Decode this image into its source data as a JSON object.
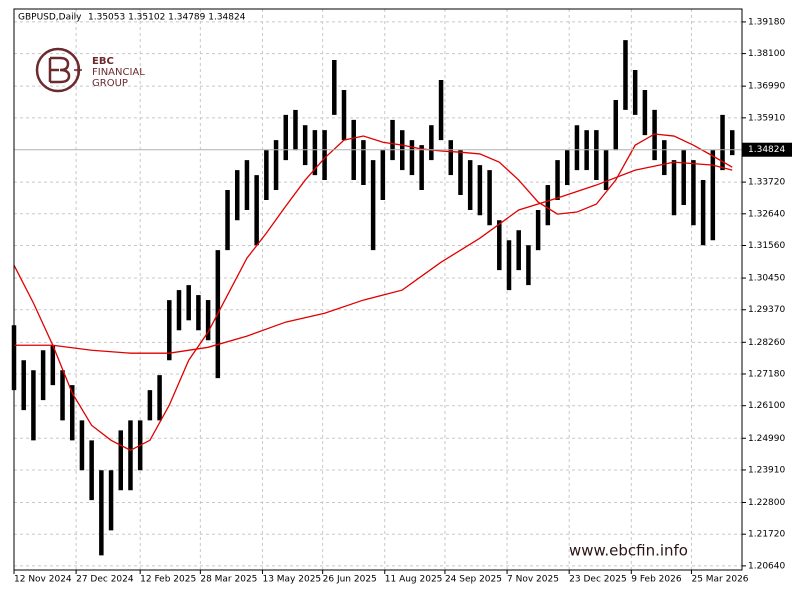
{
  "chart_data": {
    "type": "ohlc",
    "title": "GBPUSD,Daily",
    "subtitle": "1.35053 1.35102 1.34789 1.34824",
    "color": "#000000",
    "grid": true,
    "xlim": [
      0,
      374
    ],
    "ylim": [
      1.205,
      1.3962
    ],
    "xticks": [
      {
        "value": 0,
        "label": "12 Nov 2024"
      },
      {
        "value": 32,
        "label": "27 Dec 2024"
      },
      {
        "value": 65,
        "label": "12 Feb 2025"
      },
      {
        "value": 96,
        "label": "28 Mar 2025"
      },
      {
        "value": 128,
        "label": "13 May 2025"
      },
      {
        "value": 159,
        "label": "26 Jun 2025"
      },
      {
        "value": 191,
        "label": "11 Aug 2025"
      },
      {
        "value": 222,
        "label": "24 Sep 2025"
      },
      {
        "value": 254,
        "label": "7 Nov 2025"
      },
      {
        "value": 286,
        "label": "23 Dec 2025"
      },
      {
        "value": 318,
        "label": "9 Feb 2026"
      },
      {
        "value": 349,
        "label": "25 Mar 2026"
      }
    ],
    "yticks": [
      {
        "value": 1.2064,
        "label": "1.20640"
      },
      {
        "value": 1.2172,
        "label": "1.21720"
      },
      {
        "value": 1.228,
        "label": "1.22800"
      },
      {
        "value": 1.2391,
        "label": "1.23910"
      },
      {
        "value": 1.2499,
        "label": "1.24990"
      },
      {
        "value": 1.261,
        "label": "1.26100"
      },
      {
        "value": 1.2718,
        "label": "1.27180"
      },
      {
        "value": 1.2826,
        "label": "1.28260"
      },
      {
        "value": 1.2937,
        "label": "1.29370"
      },
      {
        "value": 1.3045,
        "label": "1.30450"
      },
      {
        "value": 1.3156,
        "label": "1.31560"
      },
      {
        "value": 1.3264,
        "label": "1.32640"
      },
      {
        "value": 1.3372,
        "label": "1.33720"
      },
      {
        "value": 1.3591,
        "label": "1.35910"
      },
      {
        "value": 1.3699,
        "label": "1.36990"
      },
      {
        "value": 1.381,
        "label": "1.38100"
      },
      {
        "value": 1.3918,
        "label": "1.39180"
      }
    ],
    "last_price": {
      "value": 1.34824,
      "label": "1.34824"
    },
    "x": [
      0,
      5,
      10,
      15,
      20,
      25,
      30,
      35,
      40,
      45,
      50,
      55,
      60,
      65,
      70,
      75,
      80,
      85,
      90,
      95,
      100,
      105,
      110,
      115,
      120,
      125,
      130,
      135,
      140,
      145,
      150,
      155,
      160,
      165,
      170,
      175,
      180,
      185,
      190,
      195,
      200,
      205,
      210,
      215,
      220,
      225,
      230,
      235,
      240,
      245,
      250,
      255,
      260,
      265,
      270,
      275,
      280,
      285,
      290,
      295,
      300,
      305,
      310,
      315,
      320,
      325,
      330,
      335,
      340,
      345,
      350,
      355,
      360,
      365,
      370
    ],
    "high": [
      1.2884,
      1.2765,
      1.2731,
      1.2799,
      1.2816,
      1.2731,
      1.268,
      1.256,
      1.2492,
      1.239,
      1.239,
      1.2526,
      1.256,
      1.256,
      1.2663,
      1.2714,
      1.297,
      1.3004,
      1.3021,
      1.2987,
      1.297,
      1.314,
      1.3345,
      1.3413,
      1.3447,
      1.3396,
      1.3481,
      1.3515,
      1.3601,
      1.3618,
      1.3566,
      1.3549,
      1.3549,
      1.3788,
      1.3686,
      1.3584,
      1.3515,
      1.3447,
      1.3481,
      1.3584,
      1.3549,
      1.3515,
      1.3498,
      1.3566,
      1.372,
      1.3515,
      1.3481,
      1.3447,
      1.343,
      1.3413,
      1.3242,
      1.3174,
      1.3208,
      1.3157,
      1.3277,
      1.3362,
      1.3447,
      1.3481,
      1.3566,
      1.3549,
      1.3549,
      1.3481,
      1.3652,
      1.3856,
      1.3754,
      1.3686,
      1.3618,
      1.3515,
      1.3447,
      1.3481,
      1.3447,
      1.3379,
      1.3481,
      1.3601,
      1.3549
    ],
    "low": [
      1.2663,
      1.2595,
      1.2492,
      1.2629,
      1.268,
      1.256,
      1.2492,
      1.239,
      1.2288,
      1.21,
      1.2185,
      1.2322,
      1.2322,
      1.239,
      1.256,
      1.256,
      1.2765,
      1.2867,
      1.2901,
      1.2867,
      1.2833,
      1.2704,
      1.314,
      1.3242,
      1.3277,
      1.3157,
      1.3311,
      1.3345,
      1.3447,
      1.3481,
      1.343,
      1.3396,
      1.3379,
      1.3601,
      1.3515,
      1.3379,
      1.3362,
      1.314,
      1.3311,
      1.3447,
      1.3413,
      1.3396,
      1.3345,
      1.3447,
      1.3515,
      1.3396,
      1.3328,
      1.3277,
      1.3259,
      1.3225,
      1.3072,
      1.3004,
      1.3072,
      1.3021,
      1.314,
      1.3225,
      1.3311,
      1.3362,
      1.3413,
      1.3413,
      1.3379,
      1.3345,
      1.3481,
      1.3618,
      1.3601,
      1.3532,
      1.3447,
      1.3396,
      1.3259,
      1.3294,
      1.3225,
      1.3157,
      1.3174,
      1.3413,
      1.3464
    ],
    "overlays": [
      {
        "type": "line",
        "color": "#e00000",
        "x": [
          0,
          10,
          20,
          30,
          40,
          50,
          60,
          70,
          80,
          90,
          100,
          110,
          120,
          130,
          140,
          150,
          160,
          170,
          180,
          190,
          200,
          210,
          220,
          230,
          240,
          250,
          260,
          270,
          280,
          290,
          300,
          310,
          320,
          330,
          340,
          350,
          360,
          370
        ],
        "values": [
          1.3089,
          1.296,
          1.2816,
          1.2653,
          1.2543,
          1.2492,
          1.2458,
          1.2492,
          1.2612,
          1.2765,
          1.2861,
          1.2987,
          1.3113,
          1.3198,
          1.329,
          1.3379,
          1.3454,
          1.3515,
          1.3529,
          1.3508,
          1.3498,
          1.3485,
          1.3478,
          1.3474,
          1.3468,
          1.344,
          1.3379,
          1.3304,
          1.3263,
          1.327,
          1.3297,
          1.3379,
          1.3498,
          1.3536,
          1.3529,
          1.3498,
          1.3461,
          1.3423
        ]
      },
      {
        "type": "line",
        "color": "#e00000",
        "x": [
          0,
          20,
          40,
          60,
          80,
          100,
          120,
          140,
          160,
          180,
          200,
          220,
          240,
          260,
          280,
          300,
          320,
          340,
          360,
          370
        ],
        "values": [
          1.2816,
          1.2816,
          1.2799,
          1.2789,
          1.2789,
          1.2809,
          1.2847,
          1.2895,
          1.2925,
          1.297,
          1.3004,
          1.3099,
          1.3181,
          1.3277,
          1.3318,
          1.3362,
          1.3413,
          1.344,
          1.343,
          1.3413
        ]
      }
    ]
  },
  "logo": {
    "lines": [
      "EBC",
      "FINANCIAL",
      "GROUP"
    ]
  },
  "website": "www.ebcfin.info"
}
